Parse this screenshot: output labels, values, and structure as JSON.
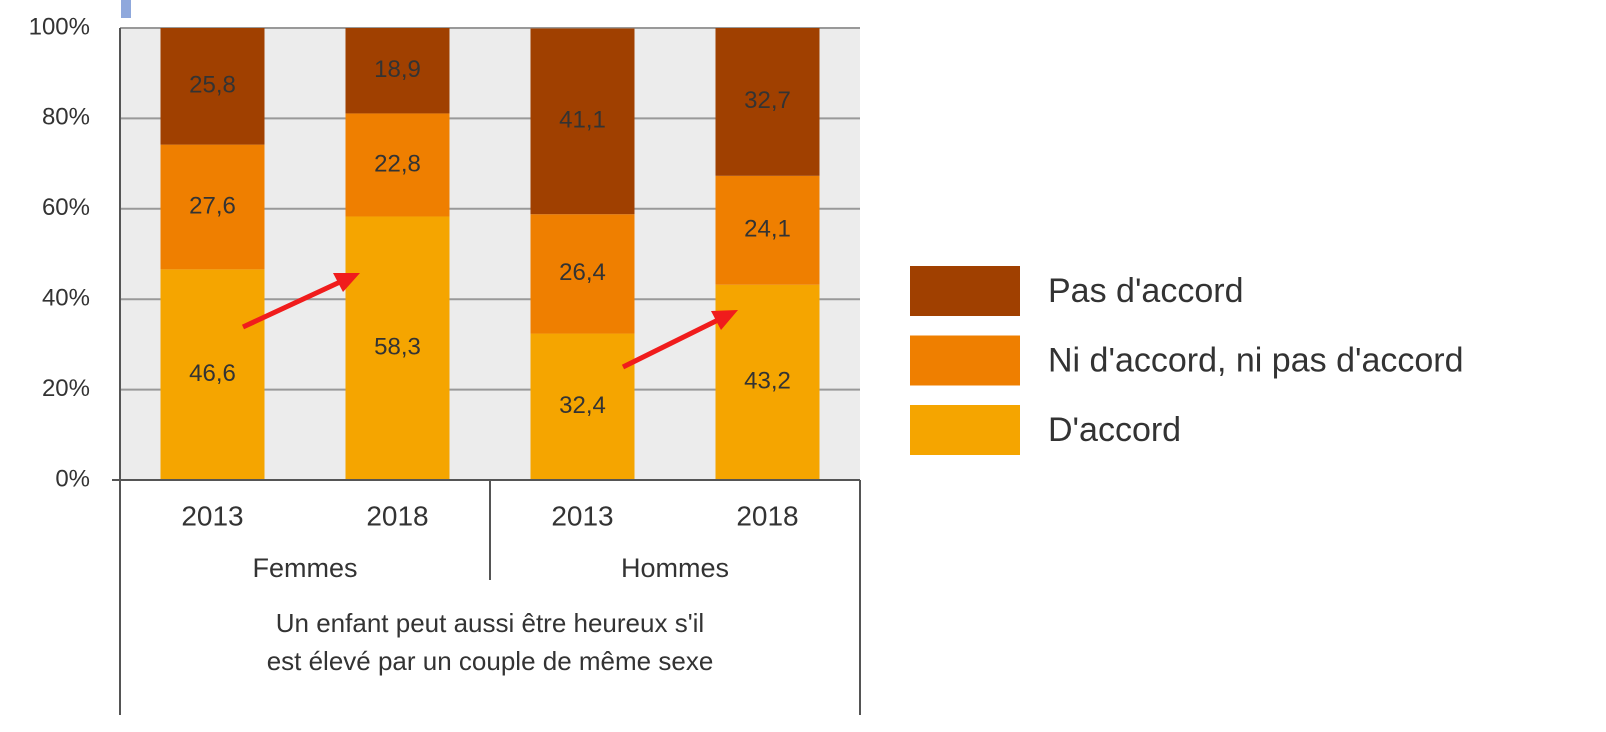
{
  "chart_data": {
    "type": "stacked_bar",
    "categories": [
      "2013",
      "2018",
      "2013",
      "2018"
    ],
    "groups": [
      "Femmes",
      "Hommes"
    ],
    "xlabel": [
      "Un enfant peut aussi être heureux s'il",
      "est élevé par un couple de même sexe"
    ],
    "series": [
      {
        "name": "D'accord",
        "color": "#f5a500",
        "values": [
          46.6,
          58.3,
          32.4,
          43.2
        ],
        "value_labels": [
          "46,6",
          "58,3",
          "32,4",
          "43,2"
        ]
      },
      {
        "name": "Ni d'accord, ni pas d'accord",
        "color": "#ef7f00",
        "values": [
          27.6,
          22.8,
          26.4,
          24.1
        ],
        "value_labels": [
          "27,6",
          "22,8",
          "26,4",
          "24,1"
        ]
      },
      {
        "name": "Pas d'accord",
        "color": "#a04000",
        "values": [
          25.8,
          18.9,
          41.1,
          32.7
        ],
        "value_labels": [
          "25,8",
          "18,9",
          "41,1",
          "32,7"
        ]
      }
    ],
    "ylim": [
      0,
      100
    ],
    "yticks": [
      {
        "value": 0,
        "label": "0%"
      },
      {
        "value": 20,
        "label": "20%"
      },
      {
        "value": 40,
        "label": "40%"
      },
      {
        "value": 60,
        "label": "60%"
      },
      {
        "value": 80,
        "label": "80%"
      },
      {
        "value": 100,
        "label": "100%"
      }
    ],
    "grid": true,
    "legend": "right"
  }
}
